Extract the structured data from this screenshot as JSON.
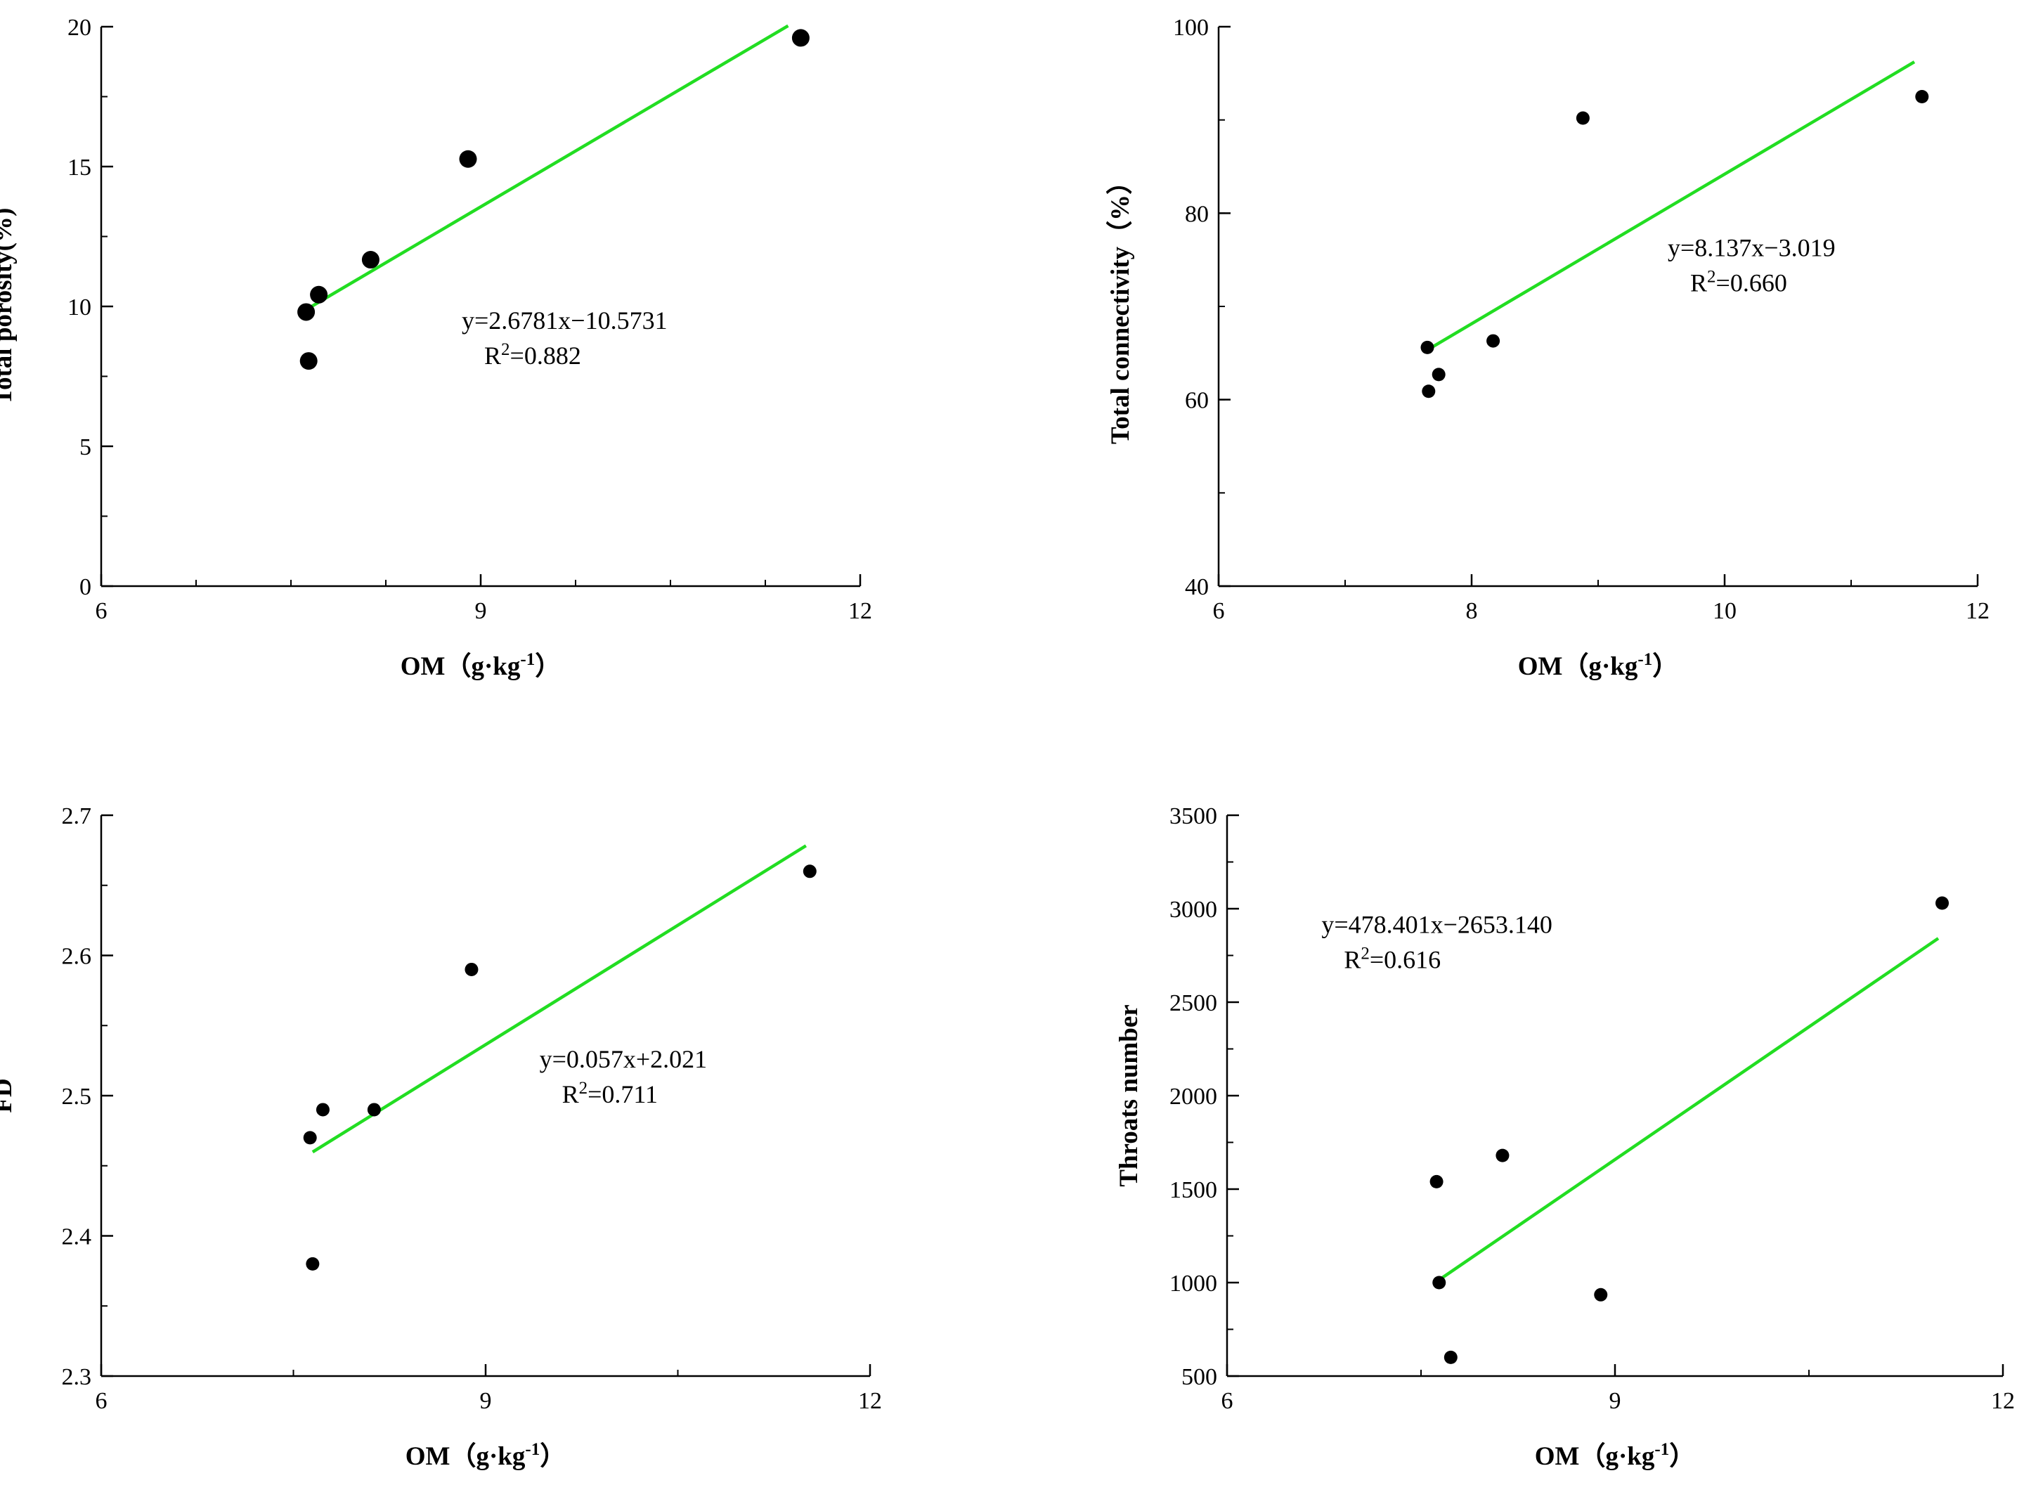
{
  "chart_data": [
    {
      "type": "scatter",
      "title": "",
      "xlabel": "OM（g·kg-1）",
      "xlabel_parts": {
        "main": "OM（g·kg",
        "sup": "-1",
        "close": "）"
      },
      "ylabel": "Total porosity(%)",
      "xlim": [
        6,
        12
      ],
      "ylim": [
        0,
        20
      ],
      "xticks": [
        6,
        9,
        12
      ],
      "yticks": [
        0,
        5,
        10,
        15,
        20
      ],
      "x_minor_step": 0.75,
      "y_minor_step": 2.5,
      "marker_size": "large",
      "points": [
        [
          7.62,
          9.8
        ],
        [
          7.64,
          8.05
        ],
        [
          7.72,
          10.42
        ],
        [
          8.13,
          11.67
        ],
        [
          8.9,
          15.27
        ],
        [
          11.53,
          19.6
        ]
      ],
      "fit": {
        "x0": 7.65,
        "x1": 11.43,
        "color": "#22dd22"
      },
      "equation": "y=2.6781x−10.5731",
      "r2": {
        "main": "R",
        "sup": "2",
        "value": "=0.882"
      },
      "annotation_anchor": {
        "x": 8.85,
        "y": 9.2
      }
    },
    {
      "type": "scatter",
      "title": "",
      "xlabel": "OM（g·kg-1）",
      "xlabel_parts": {
        "main": "OM（g·kg",
        "sup": "-1",
        "close": "）"
      },
      "ylabel": "Total connectivity（%）",
      "xlim": [
        6,
        12
      ],
      "ylim": [
        40,
        100
      ],
      "xticks": [
        6,
        8,
        10,
        12
      ],
      "yticks": [
        40,
        60,
        80,
        100
      ],
      "x_minor_step": 1,
      "y_minor_step": 10,
      "marker_size": "small",
      "points": [
        [
          7.65,
          65.6
        ],
        [
          7.66,
          60.9
        ],
        [
          7.74,
          62.7
        ],
        [
          8.17,
          66.3
        ],
        [
          8.88,
          90.2
        ],
        [
          11.56,
          92.5
        ]
      ],
      "fit": {
        "x0": 7.65,
        "x1": 11.5,
        "color": "#22dd22"
      },
      "equation": "y=8.137x−3.019",
      "r2": {
        "main": "R",
        "sup": "2",
        "value": "=0.660"
      },
      "annotation_anchor": {
        "x": 9.55,
        "y": 75.4
      }
    },
    {
      "type": "scatter",
      "title": "",
      "xlabel": "OM（g·kg-1）",
      "xlabel_parts": {
        "main": "OM（g·kg",
        "sup": "-1",
        "close": "）"
      },
      "ylabel": "FD",
      "xlim": [
        6,
        12
      ],
      "ylim": [
        2.3,
        2.7
      ],
      "xticks": [
        6,
        9,
        12
      ],
      "yticks": [
        "2.3",
        "2.4",
        "2.5",
        "2.6",
        "2.7"
      ],
      "x_minor_step": 1.5,
      "y_minor_step": 0.05,
      "marker_size": "small",
      "points": [
        [
          7.63,
          2.47
        ],
        [
          7.65,
          2.38
        ],
        [
          7.73,
          2.49
        ],
        [
          8.13,
          2.49
        ],
        [
          8.89,
          2.59
        ],
        [
          11.53,
          2.66
        ]
      ],
      "fit": {
        "x0": 7.65,
        "x1": 11.5,
        "color": "#22dd22"
      },
      "equation": "y=0.057x+2.021",
      "r2": {
        "main": "R",
        "sup": "2",
        "value": "=0.711"
      },
      "annotation_anchor": {
        "x": 9.42,
        "y": 2.52
      }
    },
    {
      "type": "scatter",
      "title": "",
      "xlabel": "OM（g·kg-1）",
      "xlabel_parts": {
        "main": "OM（g·kg",
        "sup": "-1",
        "close": "）"
      },
      "ylabel": "Throats number",
      "xlim": [
        6,
        12
      ],
      "ylim": [
        500,
        3500
      ],
      "xticks": [
        6,
        9,
        12
      ],
      "yticks": [
        500,
        1000,
        1500,
        2000,
        2500,
        3000,
        3500
      ],
      "x_minor_step": 1.5,
      "y_minor_step": 250,
      "marker_size": "small",
      "points": [
        [
          7.62,
          1540
        ],
        [
          7.64,
          1000
        ],
        [
          7.73,
          600
        ],
        [
          8.13,
          1680
        ],
        [
          8.89,
          935
        ],
        [
          11.53,
          3030
        ]
      ],
      "fit": {
        "x0": 7.65,
        "x1": 11.5,
        "color": "#22dd22"
      },
      "equation": "y=478.401x−2653.140",
      "r2": {
        "main": "R",
        "sup": "2",
        "value": "=0.616"
      },
      "annotation_anchor": {
        "x": 6.73,
        "y": 2870
      }
    }
  ]
}
